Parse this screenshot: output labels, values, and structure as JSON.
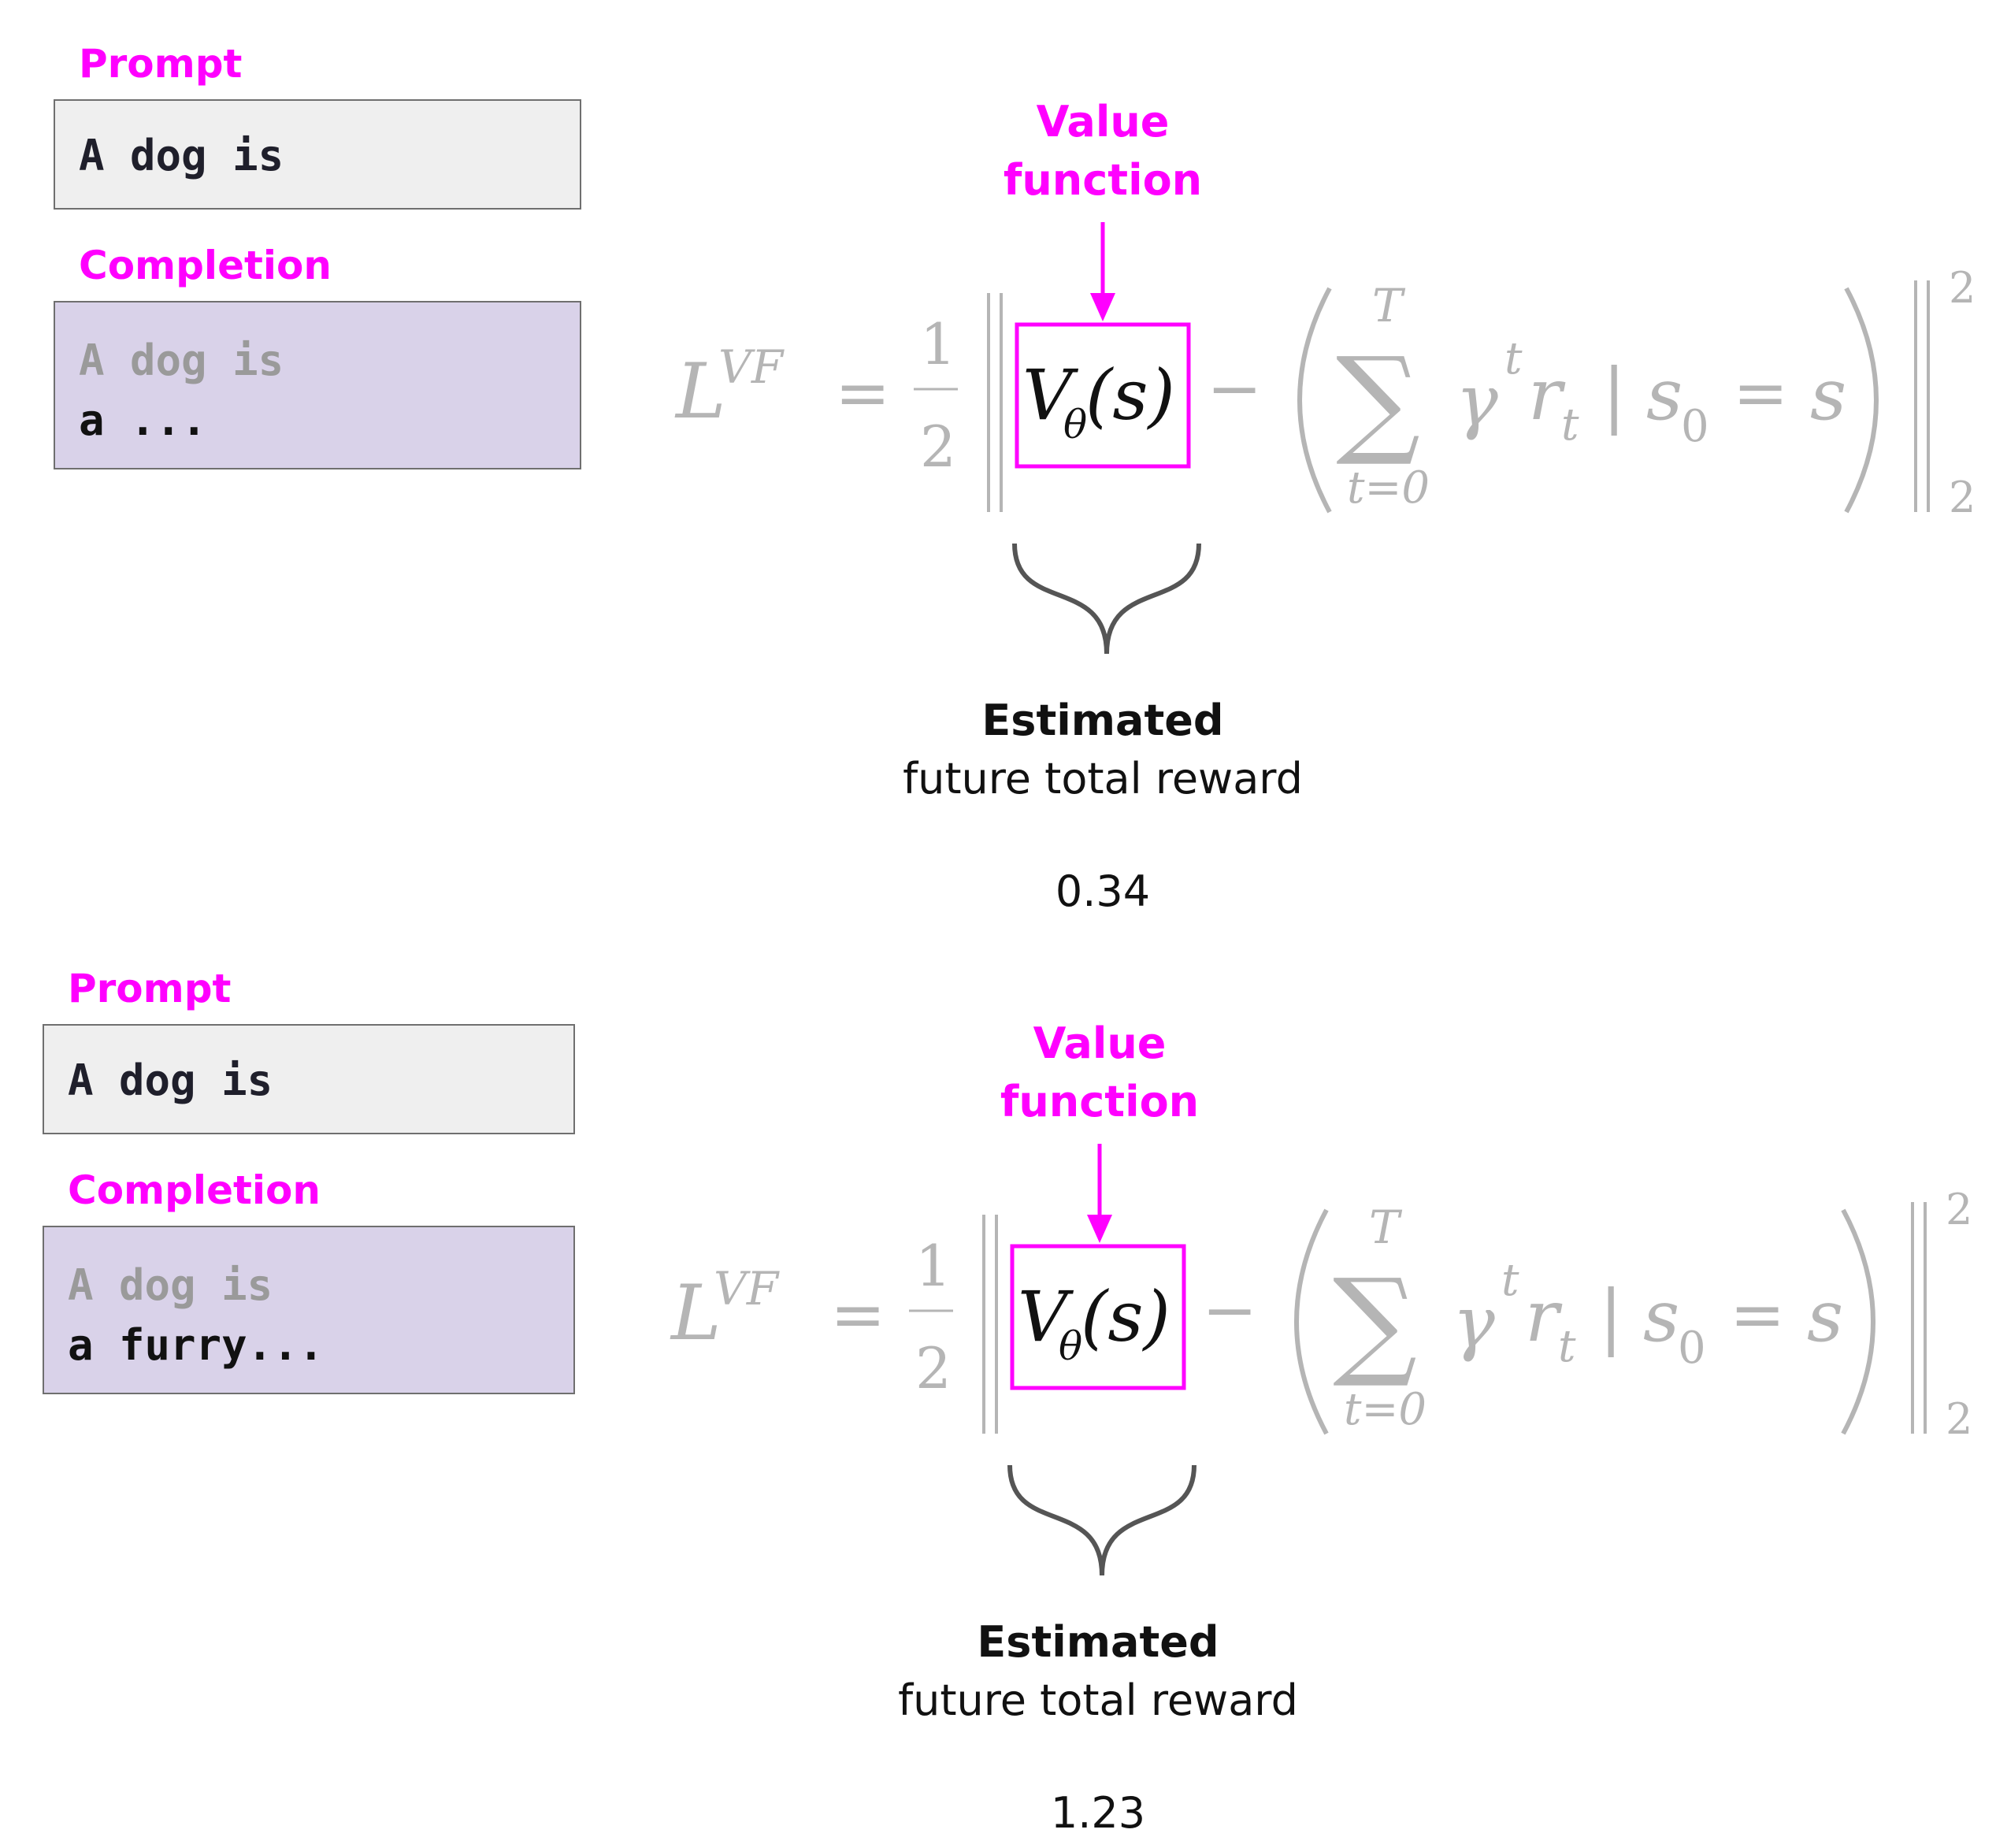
{
  "panels": [
    {
      "prompt_label": "Prompt",
      "prompt_text": "A dog is",
      "completion_label": "Completion",
      "completion_prefix": "A dog is",
      "completion_new": "a ...",
      "value_function_label_line1": "Value",
      "value_function_label_line2": "function",
      "estimated_title": "Estimated",
      "estimated_subtitle": "future total reward",
      "value": "0.34"
    },
    {
      "prompt_label": "Prompt",
      "prompt_text": "A dog is",
      "completion_label": "Completion",
      "completion_prefix": "A dog is",
      "completion_new": "a furry...",
      "value_function_label_line1": "Value",
      "value_function_label_line2": "function",
      "estimated_title": "Estimated",
      "estimated_subtitle": "future total reward",
      "value": "1.23"
    }
  ],
  "equation": {
    "L": "L",
    "VF": "VF",
    "equals": "=",
    "one": "1",
    "two": "2",
    "V": "V",
    "theta": "θ",
    "s_paren": "(s)",
    "minus": "−",
    "T": "T",
    "sum": "∑",
    "t_eq_0": "t=0",
    "gamma": "γ",
    "t": "t",
    "r": "r",
    "bar": "|",
    "s": "s",
    "zero": "0",
    "sup2": "2",
    "sub2": "2"
  },
  "colors": {
    "accent": "#ff00ff",
    "equation_gray": "#b5b5b5",
    "prompt_bg": "#efefef",
    "completion_bg": "#d9d2e9",
    "brace": "#555555"
  }
}
